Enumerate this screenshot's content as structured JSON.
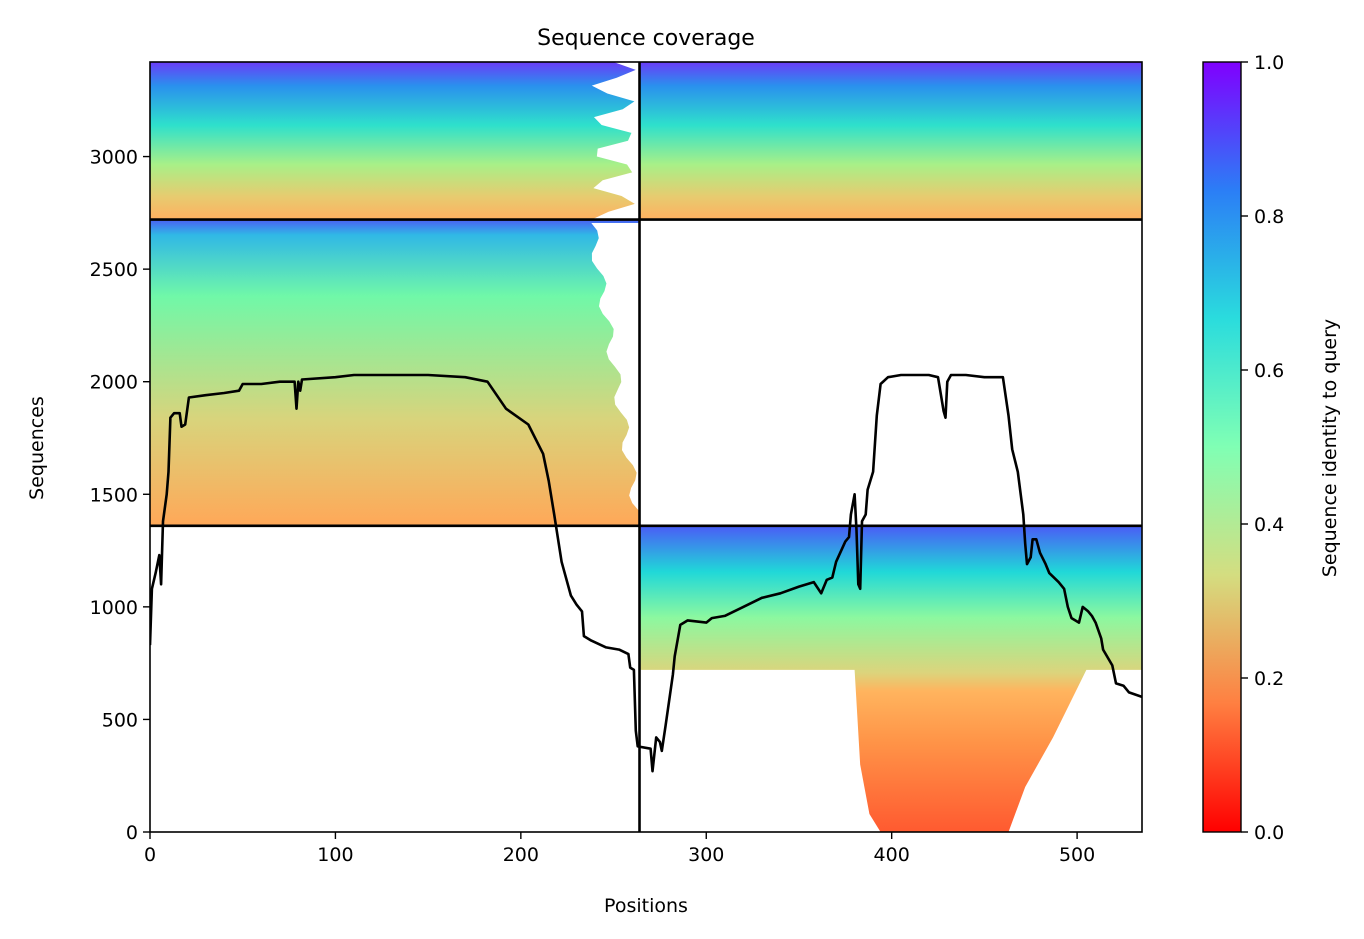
{
  "chart_data": {
    "type": "heatmap",
    "title": "Sequence coverage",
    "xlabel": "Positions",
    "ylabel": "Sequences",
    "xlim": [
      0,
      535
    ],
    "ylim": [
      0,
      3420
    ],
    "x_ticks": [
      0,
      100,
      200,
      300,
      400,
      500
    ],
    "y_ticks": [
      0,
      500,
      1000,
      1500,
      2000,
      2500,
      3000
    ],
    "grid": false,
    "colorbar": {
      "label": "Sequence identity to query",
      "range": [
        0,
        1
      ],
      "ticks": [
        0.0,
        0.2,
        0.4,
        0.6,
        0.8,
        1.0
      ],
      "tick_labels": [
        "0.0",
        "0.2",
        "0.4",
        "0.6",
        "0.8",
        "1.0"
      ],
      "colormap": "rainbow_r",
      "colors": [
        "#ff0000",
        "#ff7f41",
        "#d4dd80",
        "#80ffb4",
        "#2adcdd",
        "#2b7ef6",
        "#8000ff"
      ]
    },
    "block_dividers": {
      "x": [
        264
      ],
      "y": [
        1360,
        2720
      ]
    },
    "blocks": [
      {
        "name": "",
        "x_range": [
          0,
          264
        ],
        "y_range": [
          2720,
          3420
        ],
        "identity_range": [
          0.3,
          0.95
        ],
        "filled": true
      },
      {
        "name": "",
        "x_range": [
          264,
          535
        ],
        "y_range": [
          2720,
          3420
        ],
        "identity_range": [
          0.3,
          0.95
        ],
        "filled": true
      },
      {
        "name": "",
        "x_range": [
          0,
          264
        ],
        "y_range": [
          1360,
          2720
        ],
        "identity_range": [
          0.22,
          0.85
        ],
        "filled": true
      },
      {
        "name": "",
        "x_range": [
          264,
          535
        ],
        "y_range": [
          1360,
          2720
        ],
        "identity_range": [
          0,
          0
        ],
        "filled": false
      },
      {
        "name": "",
        "x_range": [
          0,
          264
        ],
        "y_range": [
          0,
          1360
        ],
        "identity_range": [
          0,
          0
        ],
        "filled": false
      },
      {
        "name": "",
        "x_range": [
          264,
          535
        ],
        "y_range": [
          0,
          1360
        ],
        "identity_range": [
          0.1,
          0.9
        ],
        "filled": true
      }
    ],
    "series": [
      {
        "name": "",
        "type": "line",
        "color": "#000000",
        "points": [
          [
            0,
            830
          ],
          [
            1,
            1080
          ],
          [
            3,
            1150
          ],
          [
            5,
            1230
          ],
          [
            6,
            1100
          ],
          [
            7,
            1380
          ],
          [
            9,
            1500
          ],
          [
            10,
            1600
          ],
          [
            11,
            1840
          ],
          [
            13,
            1860
          ],
          [
            16,
            1860
          ],
          [
            17,
            1800
          ],
          [
            19,
            1810
          ],
          [
            21,
            1930
          ],
          [
            30,
            1940
          ],
          [
            40,
            1950
          ],
          [
            48,
            1960
          ],
          [
            50,
            1990
          ],
          [
            60,
            1990
          ],
          [
            70,
            2000
          ],
          [
            78,
            2000
          ],
          [
            79,
            1880
          ],
          [
            80,
            2000
          ],
          [
            81,
            1960
          ],
          [
            82,
            2010
          ],
          [
            100,
            2020
          ],
          [
            110,
            2030
          ],
          [
            150,
            2030
          ],
          [
            170,
            2020
          ],
          [
            182,
            2000
          ],
          [
            192,
            1880
          ],
          [
            204,
            1810
          ],
          [
            212,
            1680
          ],
          [
            215,
            1560
          ],
          [
            218,
            1410
          ],
          [
            222,
            1200
          ],
          [
            227,
            1050
          ],
          [
            230,
            1010
          ],
          [
            233,
            980
          ],
          [
            234,
            870
          ],
          [
            238,
            850
          ],
          [
            246,
            820
          ],
          [
            253,
            810
          ],
          [
            258,
            790
          ],
          [
            259,
            730
          ],
          [
            261,
            720
          ],
          [
            262,
            450
          ],
          [
            263,
            380
          ],
          [
            270,
            370
          ],
          [
            271,
            270
          ],
          [
            273,
            420
          ],
          [
            275,
            400
          ],
          [
            276,
            360
          ],
          [
            278,
            470
          ],
          [
            282,
            700
          ],
          [
            283,
            780
          ],
          [
            286,
            920
          ],
          [
            290,
            940
          ],
          [
            300,
            930
          ],
          [
            303,
            950
          ],
          [
            310,
            960
          ],
          [
            320,
            1000
          ],
          [
            330,
            1040
          ],
          [
            340,
            1060
          ],
          [
            350,
            1090
          ],
          [
            358,
            1110
          ],
          [
            362,
            1060
          ],
          [
            365,
            1120
          ],
          [
            368,
            1130
          ],
          [
            370,
            1200
          ],
          [
            375,
            1290
          ],
          [
            377,
            1310
          ],
          [
            378,
            1410
          ],
          [
            380,
            1500
          ],
          [
            381,
            1340
          ],
          [
            382,
            1100
          ],
          [
            383,
            1080
          ],
          [
            384,
            1380
          ],
          [
            386,
            1410
          ],
          [
            387,
            1520
          ],
          [
            390,
            1600
          ],
          [
            392,
            1850
          ],
          [
            394,
            1990
          ],
          [
            398,
            2020
          ],
          [
            405,
            2030
          ],
          [
            420,
            2030
          ],
          [
            425,
            2020
          ],
          [
            428,
            1870
          ],
          [
            429,
            1840
          ],
          [
            430,
            2000
          ],
          [
            432,
            2030
          ],
          [
            440,
            2030
          ],
          [
            450,
            2020
          ],
          [
            460,
            2020
          ],
          [
            463,
            1850
          ],
          [
            465,
            1700
          ],
          [
            468,
            1600
          ],
          [
            471,
            1410
          ],
          [
            472,
            1280
          ],
          [
            473,
            1190
          ],
          [
            475,
            1220
          ],
          [
            476,
            1300
          ],
          [
            478,
            1300
          ],
          [
            480,
            1240
          ],
          [
            483,
            1190
          ],
          [
            485,
            1150
          ],
          [
            490,
            1110
          ],
          [
            493,
            1080
          ],
          [
            495,
            1000
          ],
          [
            497,
            950
          ],
          [
            501,
            930
          ],
          [
            503,
            1000
          ],
          [
            506,
            980
          ],
          [
            508,
            960
          ],
          [
            510,
            930
          ],
          [
            513,
            860
          ],
          [
            514,
            810
          ],
          [
            519,
            740
          ],
          [
            521,
            660
          ],
          [
            525,
            650
          ],
          [
            528,
            620
          ],
          [
            535,
            600
          ]
        ]
      }
    ]
  }
}
